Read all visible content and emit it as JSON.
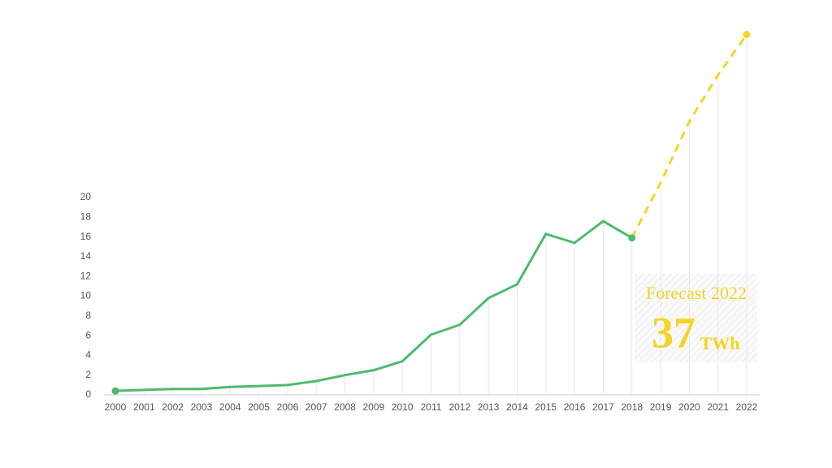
{
  "chart_data": {
    "type": "line",
    "categories": [
      "2000",
      "2001",
      "2002",
      "2003",
      "2004",
      "2005",
      "2006",
      "2007",
      "2008",
      "2009",
      "2010",
      "2011",
      "2012",
      "2013",
      "2014",
      "2015",
      "2016",
      "2017",
      "2018",
      "2019",
      "2020",
      "2021",
      "2022"
    ],
    "series": [
      {
        "color": "#4cbb6c",
        "dash": false,
        "values": [
          0.4,
          0.5,
          0.6,
          0.6,
          0.8,
          0.9,
          1.0,
          1.4,
          2.0,
          2.5,
          3.4,
          6.1,
          7.1,
          9.8,
          11.2,
          16.3,
          15.4,
          17.6,
          15.9,
          null,
          null,
          null,
          null
        ]
      },
      {
        "color": "#f5d327",
        "dash": true,
        "values": [
          null,
          null,
          null,
          null,
          null,
          null,
          null,
          null,
          null,
          null,
          null,
          null,
          null,
          null,
          null,
          null,
          null,
          null,
          15.9,
          21.5,
          27.7,
          32.4,
          36.5
        ]
      }
    ],
    "ylim": [
      0,
      37.5
    ],
    "yticks": [
      0,
      2,
      4,
      6,
      8,
      10,
      12,
      14,
      16,
      18,
      20
    ],
    "annotation": {
      "title": "Forecast 2022",
      "value": 37,
      "unit": "TWh",
      "color": "#f5d327"
    }
  }
}
